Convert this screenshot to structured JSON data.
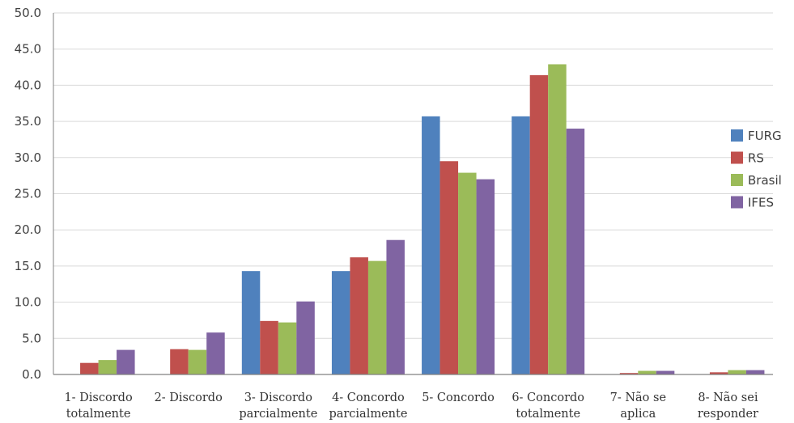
{
  "chart_data": {
    "type": "bar",
    "title": "",
    "xlabel": "",
    "ylabel": "",
    "ylim": [
      0,
      50
    ],
    "yticks": [
      "0.0",
      "5.0",
      "10.0",
      "15.0",
      "20.0",
      "25.0",
      "30.0",
      "35.0",
      "40.0",
      "45.0",
      "50.0"
    ],
    "grid": true,
    "legend_position": "right",
    "categories": [
      [
        "1- Discordo",
        "totalmente"
      ],
      [
        "2- Discordo"
      ],
      [
        "3- Discordo",
        "parcialmente"
      ],
      [
        "4- Concordo",
        "parcialmente"
      ],
      [
        "5- Concordo"
      ],
      [
        "6- Concordo",
        "totalmente"
      ],
      [
        "7- Não se",
        "aplica"
      ],
      [
        "8- Não sei",
        "responder"
      ]
    ],
    "series": [
      {
        "name": "FURG",
        "color": "#4f81bd",
        "values": [
          0.0,
          0.0,
          14.3,
          14.3,
          35.7,
          35.7,
          0.0,
          0.0
        ]
      },
      {
        "name": "RS",
        "color": "#c0504d",
        "values": [
          1.6,
          3.5,
          7.4,
          16.2,
          29.5,
          41.4,
          0.2,
          0.3
        ]
      },
      {
        "name": "Brasil",
        "color": "#9bbb59",
        "values": [
          2.0,
          3.4,
          7.2,
          15.7,
          27.9,
          42.9,
          0.5,
          0.6
        ]
      },
      {
        "name": "IFES",
        "color": "#8064a2",
        "values": [
          3.4,
          5.8,
          10.1,
          18.6,
          27.0,
          34.0,
          0.5,
          0.6
        ]
      }
    ]
  }
}
